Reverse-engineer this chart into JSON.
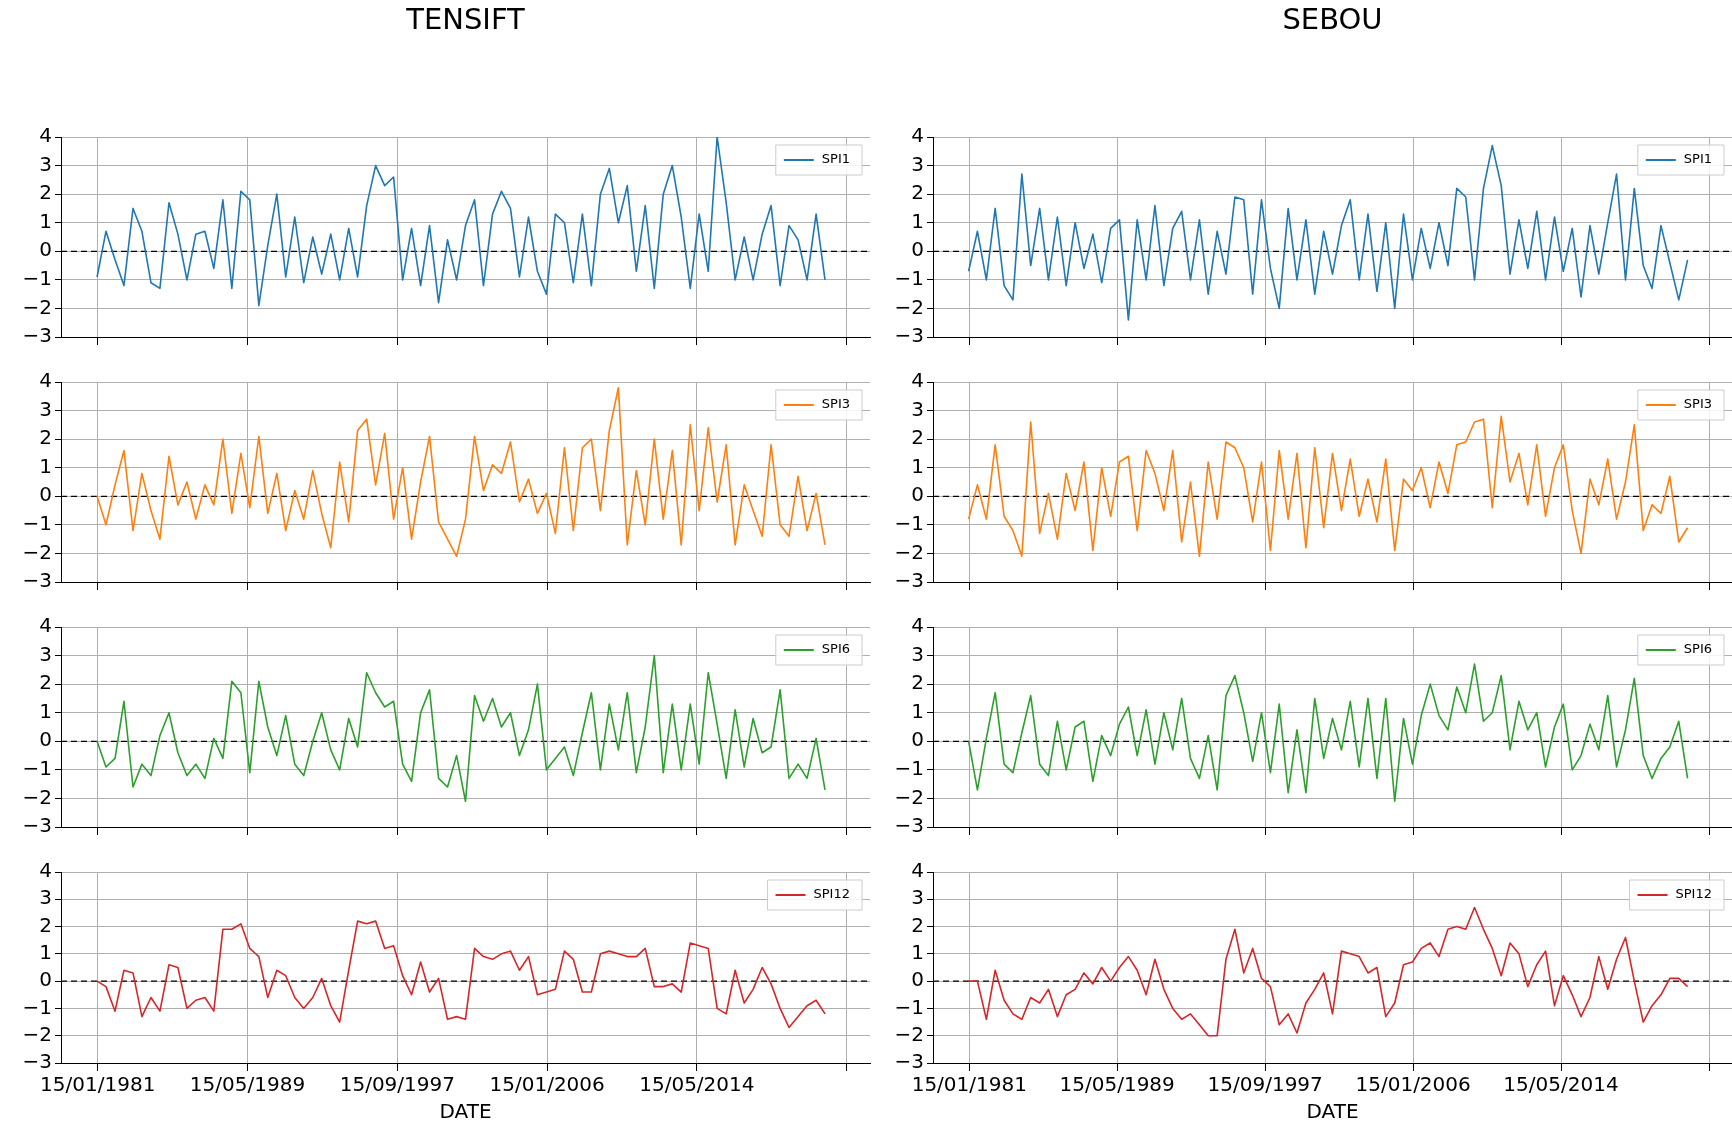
{
  "chart_data": [
    {
      "type": "line",
      "title": "TENSIFT",
      "tick_labels": "y",
      "grid": true,
      "legend": "top right",
      "marker": "none",
      "line_style": "solid",
      "xlim": [
        "1978-12-30",
        "2024-01-01"
      ],
      "ylim": [
        -3,
        4
      ],
      "yticks": [
        -3,
        -2,
        -1,
        0,
        1,
        2,
        3,
        4
      ],
      "xticks": [
        {
          "value": "1981-01-15",
          "label": null
        },
        {
          "value": "1989-05-15",
          "label": null
        },
        {
          "value": "1997-09-15",
          "label": null
        },
        {
          "value": "2006-01-15",
          "label": null
        },
        {
          "value": "2014-05-15",
          "label": null
        },
        {
          "value": "2022-09-15",
          "label": null
        }
      ],
      "ref_lines": [
        {
          "axis": "y",
          "value": 0,
          "color": "#000000",
          "line_style": "dashed"
        }
      ],
      "x": [
        "1981-01",
        "1981-07",
        "1982-01",
        "1982-07",
        "1983-01",
        "1983-07",
        "1984-01",
        "1984-07",
        "1985-01",
        "1985-07",
        "1986-01",
        "1986-07",
        "1987-01",
        "1987-07",
        "1988-01",
        "1988-07",
        "1989-01",
        "1989-07",
        "1990-01",
        "1990-07",
        "1991-01",
        "1991-07",
        "1992-01",
        "1992-07",
        "1993-01",
        "1993-07",
        "1994-01",
        "1994-07",
        "1995-01",
        "1995-07",
        "1996-01",
        "1996-07",
        "1997-01",
        "1997-07",
        "1998-01",
        "1998-07",
        "1999-01",
        "1999-07",
        "2000-01",
        "2000-07",
        "2001-01",
        "2001-07",
        "2002-01",
        "2002-07",
        "2003-01",
        "2003-07",
        "2004-01",
        "2004-07",
        "2005-01",
        "2005-07",
        "2006-01",
        "2006-07",
        "2007-01",
        "2007-07",
        "2008-01",
        "2008-07",
        "2009-01",
        "2009-07",
        "2010-01",
        "2010-07",
        "2011-01",
        "2011-07",
        "2012-01",
        "2012-07",
        "2013-01",
        "2013-07",
        "2014-01",
        "2014-07",
        "2015-01",
        "2015-07",
        "2016-01",
        "2016-07",
        "2017-01",
        "2017-07",
        "2018-01",
        "2018-07",
        "2019-01",
        "2019-07",
        "2020-01",
        "2020-07",
        "2021-01",
        "2021-07"
      ],
      "series": [
        {
          "name": "SPI1",
          "color": "#1f77b4",
          "values": [
            -0.9,
            0.7,
            -0.3,
            -1.2,
            1.5,
            0.7,
            -1.1,
            -1.3,
            1.7,
            0.6,
            -1.0,
            0.6,
            0.7,
            -0.6,
            1.8,
            -1.3,
            2.1,
            1.8,
            -1.9,
            0.2,
            2.0,
            -0.9,
            1.2,
            -1.1,
            0.5,
            -0.8,
            0.6,
            -1.0,
            0.8,
            -0.9,
            1.6,
            3.0,
            2.3,
            2.6,
            -1.0,
            0.8,
            -1.2,
            0.9,
            -1.8,
            0.4,
            -1.0,
            0.9,
            1.8,
            -1.2,
            1.3,
            2.1,
            1.5,
            -0.9,
            1.2,
            -0.7,
            -1.5,
            1.3,
            1.0,
            -1.1,
            1.3,
            -1.2,
            2.0,
            2.9,
            1.0,
            2.3,
            -0.7,
            1.6,
            -1.3,
            2.0,
            3.0,
            1.2,
            -1.3,
            1.3,
            -0.7,
            4.0,
            1.7,
            -1.0,
            0.5,
            -1.0,
            0.6,
            1.6,
            -1.2,
            0.9,
            0.4,
            -1.0,
            1.3,
            -1.0
          ]
        }
      ]
    },
    {
      "type": "line",
      "title": "SEBOU",
      "tick_labels": "y",
      "grid": true,
      "legend": "top right",
      "marker": "none",
      "line_style": "solid",
      "xlim": [
        "1978-12-30",
        "2024-01-01"
      ],
      "ylim": [
        -3,
        4
      ],
      "yticks": [
        -3,
        -2,
        -1,
        0,
        1,
        2,
        3,
        4
      ],
      "xticks": [
        {
          "value": "1981-01-15",
          "label": null
        },
        {
          "value": "1989-05-15",
          "label": null
        },
        {
          "value": "1997-09-15",
          "label": null
        },
        {
          "value": "2006-01-15",
          "label": null
        },
        {
          "value": "2014-05-15",
          "label": null
        },
        {
          "value": "2022-09-15",
          "label": null
        }
      ],
      "ref_lines": [
        {
          "axis": "y",
          "value": 0,
          "color": "#000000",
          "line_style": "dashed"
        }
      ],
      "x": [
        "1981-01",
        "1981-07",
        "1982-01",
        "1982-07",
        "1983-01",
        "1983-07",
        "1984-01",
        "1984-07",
        "1985-01",
        "1985-07",
        "1986-01",
        "1986-07",
        "1987-01",
        "1987-07",
        "1988-01",
        "1988-07",
        "1989-01",
        "1989-07",
        "1990-01",
        "1990-07",
        "1991-01",
        "1991-07",
        "1992-01",
        "1992-07",
        "1993-01",
        "1993-07",
        "1994-01",
        "1994-07",
        "1995-01",
        "1995-07",
        "1996-01",
        "1996-07",
        "1997-01",
        "1997-07",
        "1998-01",
        "1998-07",
        "1999-01",
        "1999-07",
        "2000-01",
        "2000-07",
        "2001-01",
        "2001-07",
        "2002-01",
        "2002-07",
        "2003-01",
        "2003-07",
        "2004-01",
        "2004-07",
        "2005-01",
        "2005-07",
        "2006-01",
        "2006-07",
        "2007-01",
        "2007-07",
        "2008-01",
        "2008-07",
        "2009-01",
        "2009-07",
        "2010-01",
        "2010-07",
        "2011-01",
        "2011-07",
        "2012-01",
        "2012-07",
        "2013-01",
        "2013-07",
        "2014-01",
        "2014-07",
        "2015-01",
        "2015-07",
        "2016-01",
        "2016-07",
        "2017-01",
        "2017-07",
        "2018-01",
        "2018-07",
        "2019-01",
        "2019-07",
        "2020-01",
        "2020-07",
        "2021-01",
        "2021-07"
      ],
      "series": [
        {
          "name": "SPI1",
          "color": "#1f77b4",
          "values": [
            -0.7,
            0.7,
            -1.0,
            1.5,
            -1.2,
            -1.7,
            2.7,
            -0.5,
            1.5,
            -1.0,
            1.2,
            -1.2,
            1.0,
            -0.6,
            0.6,
            -1.1,
            0.8,
            1.1,
            -2.4,
            1.1,
            -1.0,
            1.6,
            -1.2,
            0.8,
            1.4,
            -1.0,
            1.1,
            -1.5,
            0.7,
            -0.8,
            1.9,
            1.8,
            -1.5,
            1.8,
            -0.6,
            -2.0,
            1.5,
            -1.0,
            1.1,
            -1.5,
            0.7,
            -0.8,
            0.9,
            1.8,
            -1.0,
            1.3,
            -1.4,
            1.0,
            -2.0,
            1.3,
            -1.0,
            0.8,
            -0.6,
            1.0,
            -0.5,
            2.2,
            1.9,
            -1.0,
            2.2,
            3.7,
            2.3,
            -0.8,
            1.1,
            -0.6,
            1.4,
            -1.0,
            1.2,
            -0.7,
            0.8,
            -1.6,
            0.9,
            -0.8,
            1.0,
            2.7,
            -1.0,
            2.2,
            -0.5,
            -1.3,
            0.9,
            -0.4,
            -1.7,
            -0.3
          ]
        }
      ]
    },
    {
      "type": "line",
      "tick_labels": "y",
      "grid": true,
      "legend": "top right",
      "marker": "none",
      "line_style": "solid",
      "xlim": [
        "1978-12-30",
        "2024-01-01"
      ],
      "ylim": [
        -3,
        4
      ],
      "yticks": [
        -3,
        -2,
        -1,
        0,
        1,
        2,
        3,
        4
      ],
      "xticks": [
        {
          "value": "1981-01-15",
          "label": null
        },
        {
          "value": "1989-05-15",
          "label": null
        },
        {
          "value": "1997-09-15",
          "label": null
        },
        {
          "value": "2006-01-15",
          "label": null
        },
        {
          "value": "2014-05-15",
          "label": null
        },
        {
          "value": "2022-09-15",
          "label": null
        }
      ],
      "ref_lines": [
        {
          "axis": "y",
          "value": 0,
          "color": "#000000",
          "line_style": "dashed"
        }
      ],
      "x": [
        "1981-01",
        "1981-07",
        "1982-01",
        "1982-07",
        "1983-01",
        "1983-07",
        "1984-01",
        "1984-07",
        "1985-01",
        "1985-07",
        "1986-01",
        "1986-07",
        "1987-01",
        "1987-07",
        "1988-01",
        "1988-07",
        "1989-01",
        "1989-07",
        "1990-01",
        "1990-07",
        "1991-01",
        "1991-07",
        "1992-01",
        "1992-07",
        "1993-01",
        "1993-07",
        "1994-01",
        "1994-07",
        "1995-01",
        "1995-07",
        "1996-01",
        "1996-07",
        "1997-01",
        "1997-07",
        "1998-01",
        "1998-07",
        "1999-01",
        "1999-07",
        "2000-01",
        "2000-07",
        "2001-01",
        "2001-07",
        "2002-01",
        "2002-07",
        "2003-01",
        "2003-07",
        "2004-01",
        "2004-07",
        "2005-01",
        "2005-07",
        "2006-01",
        "2006-07",
        "2007-01",
        "2007-07",
        "2008-01",
        "2008-07",
        "2009-01",
        "2009-07",
        "2010-01",
        "2010-07",
        "2011-01",
        "2011-07",
        "2012-01",
        "2012-07",
        "2013-01",
        "2013-07",
        "2014-01",
        "2014-07",
        "2015-01",
        "2015-07",
        "2016-01",
        "2016-07",
        "2017-01",
        "2017-07",
        "2018-01",
        "2018-07",
        "2019-01",
        "2019-07",
        "2020-01",
        "2020-07",
        "2021-01",
        "2021-07"
      ],
      "series": [
        {
          "name": "SPI3",
          "color": "#ff7f0e",
          "values": [
            0.0,
            -1.0,
            0.4,
            1.6,
            -1.2,
            0.8,
            -0.5,
            -1.5,
            1.4,
            -0.3,
            0.5,
            -0.8,
            0.4,
            -0.3,
            2.0,
            -0.6,
            1.5,
            -0.4,
            2.1,
            -0.6,
            0.8,
            -1.2,
            0.2,
            -0.8,
            0.9,
            -0.6,
            -1.8,
            1.2,
            -0.9,
            2.3,
            2.7,
            0.4,
            2.2,
            -0.8,
            1.0,
            -1.5,
            0.5,
            2.1,
            -0.9,
            -1.5,
            -2.1,
            -0.8,
            2.1,
            0.2,
            1.1,
            0.8,
            1.9,
            -0.2,
            0.6,
            -0.6,
            0.1,
            -1.3,
            1.7,
            -1.2,
            1.7,
            2.0,
            -0.5,
            2.3,
            3.8,
            -1.7,
            0.9,
            -1.0,
            2.0,
            -0.8,
            1.6,
            -1.7,
            2.5,
            -0.5,
            2.4,
            -0.2,
            1.8,
            -1.7,
            0.4,
            -0.5,
            -1.4,
            1.8,
            -1.0,
            -1.4,
            0.7,
            -1.2,
            0.1,
            -1.7
          ]
        }
      ]
    },
    {
      "type": "line",
      "tick_labels": "y",
      "grid": true,
      "legend": "top right",
      "marker": "none",
      "line_style": "solid",
      "xlim": [
        "1978-12-30",
        "2024-01-01"
      ],
      "ylim": [
        -3,
        4
      ],
      "yticks": [
        -3,
        -2,
        -1,
        0,
        1,
        2,
        3,
        4
      ],
      "xticks": [
        {
          "value": "1981-01-15",
          "label": null
        },
        {
          "value": "1989-05-15",
          "label": null
        },
        {
          "value": "1997-09-15",
          "label": null
        },
        {
          "value": "2006-01-15",
          "label": null
        },
        {
          "value": "2014-05-15",
          "label": null
        },
        {
          "value": "2022-09-15",
          "label": null
        }
      ],
      "ref_lines": [
        {
          "axis": "y",
          "value": 0,
          "color": "#000000",
          "line_style": "dashed"
        }
      ],
      "x": [
        "1981-01",
        "1981-07",
        "1982-01",
        "1982-07",
        "1983-01",
        "1983-07",
        "1984-01",
        "1984-07",
        "1985-01",
        "1985-07",
        "1986-01",
        "1986-07",
        "1987-01",
        "1987-07",
        "1988-01",
        "1988-07",
        "1989-01",
        "1989-07",
        "1990-01",
        "1990-07",
        "1991-01",
        "1991-07",
        "1992-01",
        "1992-07",
        "1993-01",
        "1993-07",
        "1994-01",
        "1994-07",
        "1995-01",
        "1995-07",
        "1996-01",
        "1996-07",
        "1997-01",
        "1997-07",
        "1998-01",
        "1998-07",
        "1999-01",
        "1999-07",
        "2000-01",
        "2000-07",
        "2001-01",
        "2001-07",
        "2002-01",
        "2002-07",
        "2003-01",
        "2003-07",
        "2004-01",
        "2004-07",
        "2005-01",
        "2005-07",
        "2006-01",
        "2006-07",
        "2007-01",
        "2007-07",
        "2008-01",
        "2008-07",
        "2009-01",
        "2009-07",
        "2010-01",
        "2010-07",
        "2011-01",
        "2011-07",
        "2012-01",
        "2012-07",
        "2013-01",
        "2013-07",
        "2014-01",
        "2014-07",
        "2015-01",
        "2015-07",
        "2016-01",
        "2016-07",
        "2017-01",
        "2017-07",
        "2018-01",
        "2018-07",
        "2019-01",
        "2019-07",
        "2020-01",
        "2020-07",
        "2021-01",
        "2021-07"
      ],
      "series": [
        {
          "name": "SPI3",
          "color": "#ff7f0e",
          "values": [
            -0.8,
            0.4,
            -0.8,
            1.8,
            -0.7,
            -1.2,
            -2.1,
            2.6,
            -1.3,
            0.1,
            -1.5,
            0.8,
            -0.5,
            1.2,
            -1.9,
            1.0,
            -0.7,
            1.2,
            1.4,
            -1.2,
            1.6,
            0.8,
            -0.5,
            1.6,
            -1.6,
            0.5,
            -2.1,
            1.2,
            -0.8,
            1.9,
            1.7,
            1.0,
            -0.9,
            1.2,
            -1.9,
            1.6,
            -0.8,
            1.5,
            -1.8,
            1.7,
            -1.1,
            1.5,
            -0.5,
            1.3,
            -0.7,
            0.6,
            -0.9,
            1.3,
            -1.9,
            0.6,
            0.2,
            1.0,
            -0.4,
            1.2,
            0.1,
            1.8,
            1.9,
            2.6,
            2.7,
            -0.4,
            2.8,
            0.5,
            1.5,
            -0.3,
            1.8,
            -0.7,
            1.0,
            1.8,
            -0.5,
            -2.0,
            0.6,
            -0.3,
            1.3,
            -0.8,
            0.5,
            2.5,
            -1.2,
            -0.3,
            -0.6,
            0.7,
            -1.6,
            -1.1
          ]
        }
      ]
    },
    {
      "type": "line",
      "tick_labels": "y",
      "grid": true,
      "legend": "top right",
      "marker": "none",
      "line_style": "solid",
      "xlim": [
        "1978-12-30",
        "2024-01-01"
      ],
      "ylim": [
        -3,
        4
      ],
      "yticks": [
        -3,
        -2,
        -1,
        0,
        1,
        2,
        3,
        4
      ],
      "xticks": [
        {
          "value": "1981-01-15",
          "label": null
        },
        {
          "value": "1989-05-15",
          "label": null
        },
        {
          "value": "1997-09-15",
          "label": null
        },
        {
          "value": "2006-01-15",
          "label": null
        },
        {
          "value": "2014-05-15",
          "label": null
        },
        {
          "value": "2022-09-15",
          "label": null
        }
      ],
      "ref_lines": [
        {
          "axis": "y",
          "value": 0,
          "color": "#000000",
          "line_style": "dashed"
        }
      ],
      "x": [
        "1981-01",
        "1981-07",
        "1982-01",
        "1982-07",
        "1983-01",
        "1983-07",
        "1984-01",
        "1984-07",
        "1985-01",
        "1985-07",
        "1986-01",
        "1986-07",
        "1987-01",
        "1987-07",
        "1988-01",
        "1988-07",
        "1989-01",
        "1989-07",
        "1990-01",
        "1990-07",
        "1991-01",
        "1991-07",
        "1992-01",
        "1992-07",
        "1993-01",
        "1993-07",
        "1994-01",
        "1994-07",
        "1995-01",
        "1995-07",
        "1996-01",
        "1996-07",
        "1997-01",
        "1997-07",
        "1998-01",
        "1998-07",
        "1999-01",
        "1999-07",
        "2000-01",
        "2000-07",
        "2001-01",
        "2001-07",
        "2002-01",
        "2002-07",
        "2003-01",
        "2003-07",
        "2004-01",
        "2004-07",
        "2005-01",
        "2005-07",
        "2006-01",
        "2006-07",
        "2007-01",
        "2007-07",
        "2008-01",
        "2008-07",
        "2009-01",
        "2009-07",
        "2010-01",
        "2010-07",
        "2011-01",
        "2011-07",
        "2012-01",
        "2012-07",
        "2013-01",
        "2013-07",
        "2014-01",
        "2014-07",
        "2015-01",
        "2015-07",
        "2016-01",
        "2016-07",
        "2017-01",
        "2017-07",
        "2018-01",
        "2018-07",
        "2019-01",
        "2019-07",
        "2020-01",
        "2020-07",
        "2021-01",
        "2021-07"
      ],
      "series": [
        {
          "name": "SPI6",
          "color": "#2ca02c",
          "values": [
            0.0,
            -0.9,
            -0.6,
            1.4,
            -1.6,
            -0.8,
            -1.2,
            0.2,
            1.0,
            -0.4,
            -1.2,
            -0.8,
            -1.3,
            0.1,
            -0.6,
            2.1,
            1.7,
            -1.1,
            2.1,
            0.5,
            -0.5,
            0.9,
            -0.8,
            -1.2,
            0.0,
            1.0,
            -0.3,
            -1.0,
            0.8,
            -0.2,
            2.4,
            1.7,
            1.2,
            1.4,
            -0.8,
            -1.4,
            1.0,
            1.8,
            -1.3,
            -1.6,
            -0.5,
            -2.1,
            1.6,
            0.7,
            1.5,
            0.5,
            1.0,
            -0.5,
            0.4,
            2.0,
            -1.0,
            -0.6,
            -0.2,
            -1.2,
            0.3,
            1.7,
            -1.0,
            1.3,
            -0.3,
            1.7,
            -1.1,
            0.5,
            3.0,
            -1.1,
            1.3,
            -1.0,
            1.3,
            -0.8,
            2.4,
            0.6,
            -1.3,
            1.1,
            -0.9,
            0.8,
            -0.4,
            -0.2,
            1.8,
            -1.3,
            -0.8,
            -1.3,
            0.1,
            -1.7
          ]
        }
      ]
    },
    {
      "type": "line",
      "tick_labels": "y",
      "grid": true,
      "legend": "top right",
      "marker": "none",
      "line_style": "solid",
      "xlim": [
        "1978-12-30",
        "2024-01-01"
      ],
      "ylim": [
        -3,
        4
      ],
      "yticks": [
        -3,
        -2,
        -1,
        0,
        1,
        2,
        3,
        4
      ],
      "xticks": [
        {
          "value": "1981-01-15",
          "label": null
        },
        {
          "value": "1989-05-15",
          "label": null
        },
        {
          "value": "1997-09-15",
          "label": null
        },
        {
          "value": "2006-01-15",
          "label": null
        },
        {
          "value": "2014-05-15",
          "label": null
        },
        {
          "value": "2022-09-15",
          "label": null
        }
      ],
      "ref_lines": [
        {
          "axis": "y",
          "value": 0,
          "color": "#000000",
          "line_style": "dashed"
        }
      ],
      "x": [
        "1981-01",
        "1981-07",
        "1982-01",
        "1982-07",
        "1983-01",
        "1983-07",
        "1984-01",
        "1984-07",
        "1985-01",
        "1985-07",
        "1986-01",
        "1986-07",
        "1987-01",
        "1987-07",
        "1988-01",
        "1988-07",
        "1989-01",
        "1989-07",
        "1990-01",
        "1990-07",
        "1991-01",
        "1991-07",
        "1992-01",
        "1992-07",
        "1993-01",
        "1993-07",
        "1994-01",
        "1994-07",
        "1995-01",
        "1995-07",
        "1996-01",
        "1996-07",
        "1997-01",
        "1997-07",
        "1998-01",
        "1998-07",
        "1999-01",
        "1999-07",
        "2000-01",
        "2000-07",
        "2001-01",
        "2001-07",
        "2002-01",
        "2002-07",
        "2003-01",
        "2003-07",
        "2004-01",
        "2004-07",
        "2005-01",
        "2005-07",
        "2006-01",
        "2006-07",
        "2007-01",
        "2007-07",
        "2008-01",
        "2008-07",
        "2009-01",
        "2009-07",
        "2010-01",
        "2010-07",
        "2011-01",
        "2011-07",
        "2012-01",
        "2012-07",
        "2013-01",
        "2013-07",
        "2014-01",
        "2014-07",
        "2015-01",
        "2015-07",
        "2016-01",
        "2016-07",
        "2017-01",
        "2017-07",
        "2018-01",
        "2018-07",
        "2019-01",
        "2019-07",
        "2020-01",
        "2020-07",
        "2021-01",
        "2021-07"
      ],
      "series": [
        {
          "name": "SPI6",
          "color": "#2ca02c",
          "values": [
            0.0,
            -1.7,
            0.1,
            1.7,
            -0.8,
            -1.1,
            0.3,
            1.6,
            -0.8,
            -1.2,
            0.7,
            -1.0,
            0.5,
            0.7,
            -1.4,
            0.2,
            -0.5,
            0.6,
            1.2,
            -0.5,
            1.1,
            -0.8,
            1.0,
            -0.3,
            1.5,
            -0.6,
            -1.3,
            0.2,
            -1.7,
            1.6,
            2.3,
            1.0,
            -0.7,
            1.0,
            -1.1,
            1.3,
            -1.8,
            0.4,
            -1.8,
            1.5,
            -0.6,
            0.8,
            -0.3,
            1.4,
            -0.9,
            1.5,
            -1.3,
            1.5,
            -2.1,
            0.8,
            -0.8,
            0.9,
            2.0,
            0.9,
            0.4,
            1.9,
            1.0,
            2.7,
            0.7,
            1.0,
            2.3,
            -0.3,
            1.4,
            0.4,
            1.0,
            -0.9,
            0.5,
            1.3,
            -1.0,
            -0.5,
            0.6,
            -0.3,
            1.6,
            -0.9,
            0.4,
            2.2,
            -0.5,
            -1.3,
            -0.6,
            -0.2,
            0.7,
            -1.3
          ]
        }
      ]
    },
    {
      "type": "line",
      "tick_labels": "xy",
      "xlabel": "DATE",
      "grid": true,
      "legend": "top right",
      "marker": "none",
      "line_style": "solid",
      "xlim": [
        "1978-12-30",
        "2024-01-01"
      ],
      "ylim": [
        -3,
        4
      ],
      "yticks": [
        -3,
        -2,
        -1,
        0,
        1,
        2,
        3,
        4
      ],
      "xticks": [
        {
          "value": "1981-01-15",
          "label": "15/01/1981"
        },
        {
          "value": "1989-05-15",
          "label": "15/05/1989"
        },
        {
          "value": "1997-09-15",
          "label": "15/09/1997"
        },
        {
          "value": "2006-01-15",
          "label": "15/01/2006"
        },
        {
          "value": "2014-05-15",
          "label": "15/05/2014"
        },
        {
          "value": "2022-09-15",
          "label": null
        }
      ],
      "ref_lines": [
        {
          "axis": "y",
          "value": 0,
          "color": "#000000",
          "line_style": "dashed"
        }
      ],
      "x": [
        "1981-01",
        "1981-07",
        "1982-01",
        "1982-07",
        "1983-01",
        "1983-07",
        "1984-01",
        "1984-07",
        "1985-01",
        "1985-07",
        "1986-01",
        "1986-07",
        "1987-01",
        "1987-07",
        "1988-01",
        "1988-07",
        "1989-01",
        "1989-07",
        "1990-01",
        "1990-07",
        "1991-01",
        "1991-07",
        "1992-01",
        "1992-07",
        "1993-01",
        "1993-07",
        "1994-01",
        "1994-07",
        "1995-01",
        "1995-07",
        "1996-01",
        "1996-07",
        "1997-01",
        "1997-07",
        "1998-01",
        "1998-07",
        "1999-01",
        "1999-07",
        "2000-01",
        "2000-07",
        "2001-01",
        "2001-07",
        "2002-01",
        "2002-07",
        "2003-01",
        "2003-07",
        "2004-01",
        "2004-07",
        "2005-01",
        "2005-07",
        "2006-01",
        "2006-07",
        "2007-01",
        "2007-07",
        "2008-01",
        "2008-07",
        "2009-01",
        "2009-07",
        "2010-01",
        "2010-07",
        "2011-01",
        "2011-07",
        "2012-01",
        "2012-07",
        "2013-01",
        "2013-07",
        "2014-01",
        "2014-07",
        "2015-01",
        "2015-07",
        "2016-01",
        "2016-07",
        "2017-01",
        "2017-07",
        "2018-01",
        "2018-07",
        "2019-01",
        "2019-07",
        "2020-01",
        "2020-07",
        "2021-01",
        "2021-07"
      ],
      "series": [
        {
          "name": "SPI12",
          "color": "#d62728",
          "values": [
            0.0,
            -0.2,
            -1.1,
            0.4,
            0.3,
            -1.3,
            -0.6,
            -1.1,
            0.6,
            0.5,
            -1.0,
            -0.7,
            -0.6,
            -1.1,
            1.9,
            1.9,
            2.1,
            1.2,
            0.9,
            -0.6,
            0.4,
            0.2,
            -0.6,
            -1.0,
            -0.6,
            0.1,
            -0.9,
            -1.5,
            0.4,
            2.2,
            2.1,
            2.2,
            1.2,
            1.3,
            0.2,
            -0.5,
            0.7,
            -0.4,
            0.1,
            -1.4,
            -1.3,
            -1.4,
            1.2,
            0.9,
            0.8,
            1.0,
            1.1,
            0.4,
            0.9,
            -0.5,
            -0.4,
            -0.3,
            1.1,
            0.8,
            -0.4,
            -0.4,
            1.0,
            1.1,
            1.0,
            0.9,
            0.9,
            1.2,
            -0.2,
            -0.2,
            -0.1,
            -0.4,
            1.4,
            1.3,
            1.2,
            -1.0,
            -1.2,
            0.4,
            -0.8,
            -0.3,
            0.5,
            -0.1,
            -1.0,
            -1.7,
            -1.3,
            -0.9,
            -0.7,
            -1.2
          ]
        }
      ]
    },
    {
      "type": "line",
      "tick_labels": "xy",
      "xlabel": "DATE",
      "grid": true,
      "legend": "top right",
      "marker": "none",
      "line_style": "solid",
      "xlim": [
        "1978-12-30",
        "2024-01-01"
      ],
      "ylim": [
        -3,
        4
      ],
      "yticks": [
        -3,
        -2,
        -1,
        0,
        1,
        2,
        3,
        4
      ],
      "xticks": [
        {
          "value": "1981-01-15",
          "label": "15/01/1981"
        },
        {
          "value": "1989-05-15",
          "label": "15/05/1989"
        },
        {
          "value": "1997-09-15",
          "label": "15/09/1997"
        },
        {
          "value": "2006-01-15",
          "label": "15/01/2006"
        },
        {
          "value": "2014-05-15",
          "label": "15/05/2014"
        },
        {
          "value": "2022-09-15",
          "label": null
        }
      ],
      "ref_lines": [
        {
          "axis": "y",
          "value": 0,
          "color": "#000000",
          "line_style": "dashed"
        }
      ],
      "x": [
        "1981-01",
        "1981-07",
        "1982-01",
        "1982-07",
        "1983-01",
        "1983-07",
        "1984-01",
        "1984-07",
        "1985-01",
        "1985-07",
        "1986-01",
        "1986-07",
        "1987-01",
        "1987-07",
        "1988-01",
        "1988-07",
        "1989-01",
        "1989-07",
        "1990-01",
        "1990-07",
        "1991-01",
        "1991-07",
        "1992-01",
        "1992-07",
        "1993-01",
        "1993-07",
        "1994-01",
        "1994-07",
        "1995-01",
        "1995-07",
        "1996-01",
        "1996-07",
        "1997-01",
        "1997-07",
        "1998-01",
        "1998-07",
        "1999-01",
        "1999-07",
        "2000-01",
        "2000-07",
        "2001-01",
        "2001-07",
        "2002-01",
        "2002-07",
        "2003-01",
        "2003-07",
        "2004-01",
        "2004-07",
        "2005-01",
        "2005-07",
        "2006-01",
        "2006-07",
        "2007-01",
        "2007-07",
        "2008-01",
        "2008-07",
        "2009-01",
        "2009-07",
        "2010-01",
        "2010-07",
        "2011-01",
        "2011-07",
        "2012-01",
        "2012-07",
        "2013-01",
        "2013-07",
        "2014-01",
        "2014-07",
        "2015-01",
        "2015-07",
        "2016-01",
        "2016-07",
        "2017-01",
        "2017-07",
        "2018-01",
        "2018-07",
        "2019-01",
        "2019-07",
        "2020-01",
        "2020-07",
        "2021-01",
        "2021-07"
      ],
      "series": [
        {
          "name": "SPI12",
          "color": "#d62728",
          "values": [
            0.0,
            0.0,
            -1.4,
            0.4,
            -0.7,
            -1.2,
            -1.4,
            -0.6,
            -0.8,
            -0.3,
            -1.3,
            -0.5,
            -0.3,
            0.3,
            -0.1,
            0.5,
            0.0,
            0.5,
            0.9,
            0.4,
            -0.5,
            0.8,
            -0.3,
            -1.0,
            -1.4,
            -1.2,
            -1.6,
            -2.0,
            -2.0,
            0.8,
            1.9,
            0.3,
            1.2,
            0.1,
            -0.2,
            -1.6,
            -1.2,
            -1.9,
            -0.8,
            -0.3,
            0.3,
            -1.2,
            1.1,
            1.0,
            0.9,
            0.3,
            0.5,
            -1.3,
            -0.8,
            0.6,
            0.7,
            1.2,
            1.4,
            0.9,
            1.9,
            2.0,
            1.9,
            2.7,
            1.9,
            1.2,
            0.2,
            1.4,
            1.0,
            -0.2,
            0.6,
            1.1,
            -0.9,
            0.2,
            -0.5,
            -1.3,
            -0.6,
            0.9,
            -0.3,
            0.8,
            1.6,
            0.0,
            -1.5,
            -0.9,
            -0.5,
            0.1,
            0.1,
            -0.2
          ]
        }
      ]
    }
  ]
}
